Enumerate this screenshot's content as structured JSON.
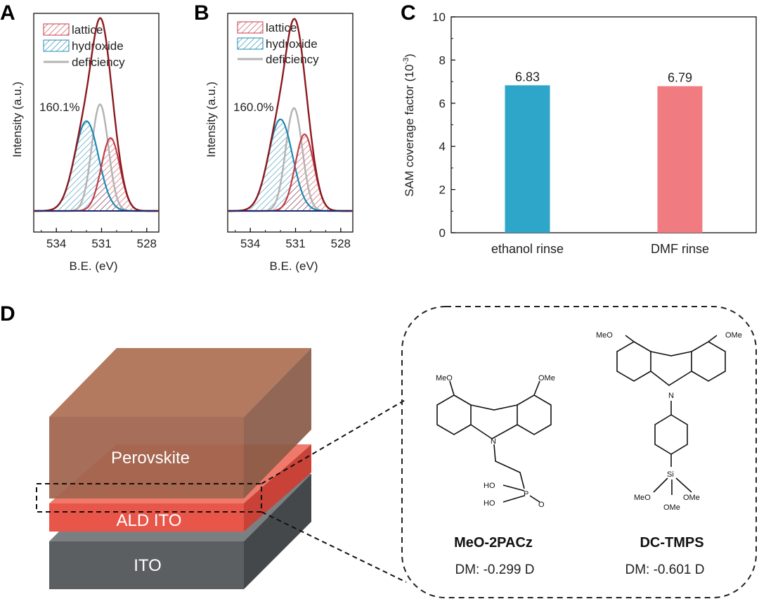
{
  "colors": {
    "lattice": "#c43c48",
    "hydroxide": "#1f88b0",
    "deficiency": "#b4b4b4",
    "envelope": "#8b1a1f",
    "baseline": "#1b2a6b",
    "bar_ethanol": "#2ea6c9",
    "bar_dmf": "#f07c82",
    "perovskite": "#a0644c",
    "ald_ito": "#e8564a",
    "ito": "#5c5f62"
  },
  "panels": {
    "A": "A",
    "B": "B",
    "C": "C",
    "D": "D"
  },
  "chart_data": [
    {
      "type": "line",
      "panel": "A",
      "xlabel": "B.E. (eV)",
      "ylabel": "Intensity (a.u.)",
      "x_ticks": [
        "534",
        "531",
        "528"
      ],
      "x_range_desc": [
        535.5,
        527.2
      ],
      "legend": [
        "lattice",
        "hydroxide",
        "deficiency"
      ],
      "annotation": "160.1%",
      "series": [
        {
          "name": "lattice",
          "center": 530.4,
          "height": 0.39,
          "sigma": 0.62
        },
        {
          "name": "hydroxide",
          "center": 532.0,
          "height": 0.48,
          "sigma": 0.8
        },
        {
          "name": "deficiency",
          "center": 531.1,
          "height": 0.57,
          "sigma": 0.55
        }
      ]
    },
    {
      "type": "line",
      "panel": "B",
      "xlabel": "B.E. (eV)",
      "ylabel": "Intensity (a.u.)",
      "x_ticks": [
        "534",
        "531",
        "528"
      ],
      "x_range_desc": [
        535.5,
        527.2
      ],
      "legend": [
        "lattice",
        "hydroxide",
        "deficiency"
      ],
      "annotation": "160.0%",
      "series": [
        {
          "name": "lattice",
          "center": 530.4,
          "height": 0.41,
          "sigma": 0.62
        },
        {
          "name": "hydroxide",
          "center": 532.0,
          "height": 0.49,
          "sigma": 0.8
        },
        {
          "name": "deficiency",
          "center": 531.1,
          "height": 0.55,
          "sigma": 0.55
        }
      ]
    },
    {
      "type": "bar",
      "panel": "C",
      "categories": [
        "ethanol rinse",
        "DMF rinse"
      ],
      "values": [
        6.83,
        6.79
      ],
      "value_labels": [
        "6.83",
        "6.79"
      ],
      "ylabel_main": "SAM coverage factor (10",
      "ylabel_sup": "-3",
      "ylabel_tail": ")",
      "ylim": [
        0,
        10
      ],
      "y_ticks": [
        "0",
        "2",
        "4",
        "6",
        "8",
        "10"
      ]
    }
  ],
  "schematic": {
    "layers": [
      "Perovskite",
      "ALD ITO",
      "ITO"
    ],
    "molecules": [
      {
        "name": "MeO-2PACz",
        "dm": "DM: -0.299 D",
        "atoms": [
          "MeO",
          "OMe",
          "N",
          "HO",
          "HO",
          "P",
          "O"
        ]
      },
      {
        "name": "DC-TMPS",
        "dm": "DM: -0.601 D",
        "atoms": [
          "MeO",
          "OMe",
          "N",
          "Si",
          "MeO",
          "OMe",
          "OMe"
        ]
      }
    ]
  }
}
